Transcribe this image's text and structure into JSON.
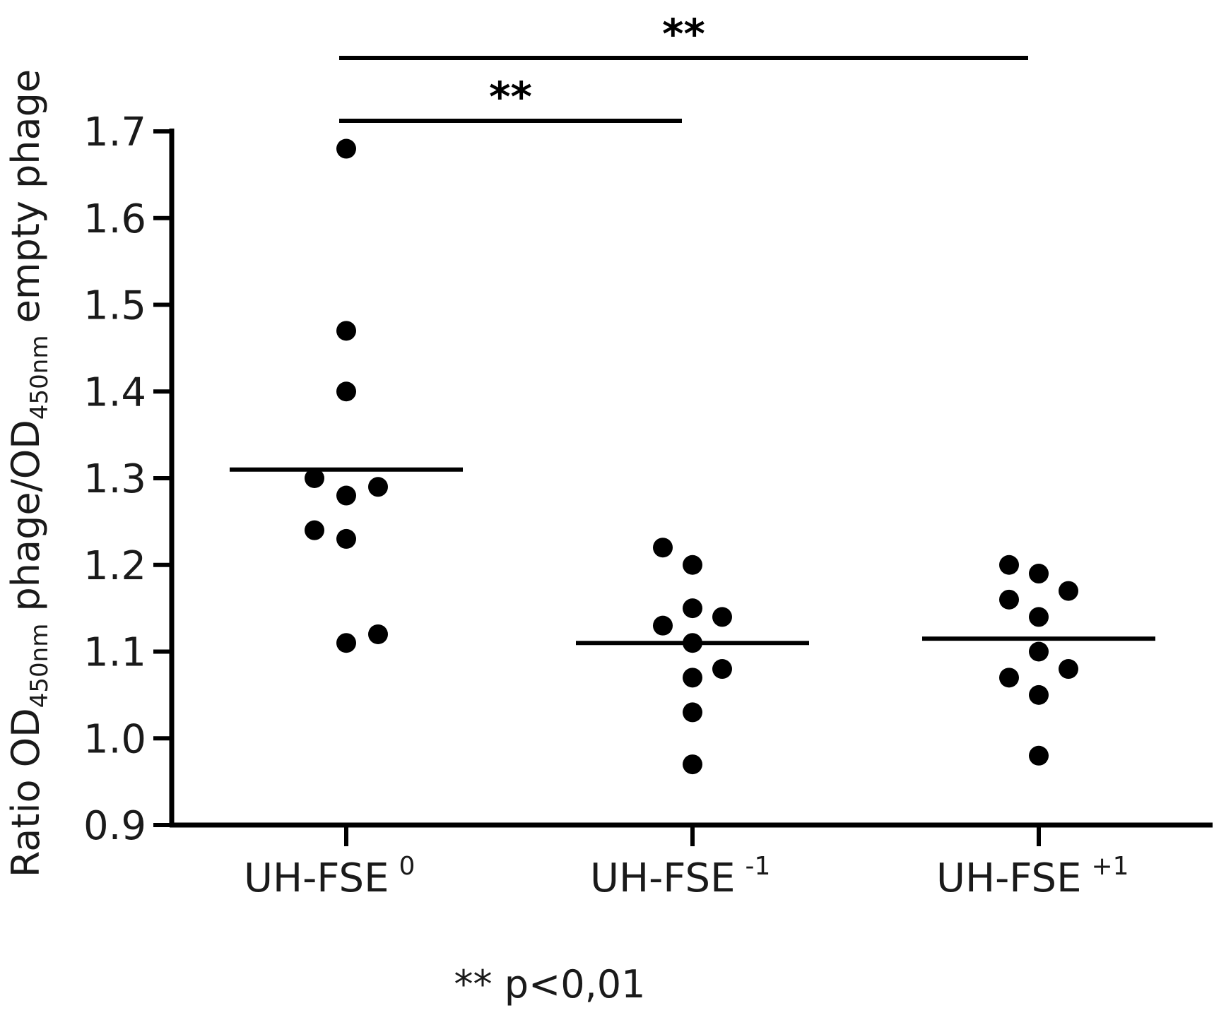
{
  "chart_data": {
    "type": "scatter",
    "ylabel_parts": {
      "prefix": "Ratio OD",
      "sub1": "450nm",
      "mid": " phage/OD",
      "sub2": "450nm",
      "suffix": " empty phage"
    },
    "ylim": [
      0.9,
      1.7
    ],
    "yticks": [
      "0.9",
      "1.0",
      "1.1",
      "1.2",
      "1.3",
      "1.4",
      "1.5",
      "1.6",
      "1.7"
    ],
    "categories": [
      {
        "base": "UH-FSE",
        "sup": "0"
      },
      {
        "base": "UH-FSE",
        "sup": "-1"
      },
      {
        "base": "UH-FSE",
        "sup": "+1"
      }
    ],
    "series": [
      {
        "values": [
          1.68,
          1.47,
          1.4,
          1.3,
          1.28,
          1.29,
          1.24,
          1.23,
          1.11,
          1.12
        ],
        "mean": 1.31
      },
      {
        "values": [
          1.22,
          1.2,
          1.15,
          1.13,
          1.14,
          1.11,
          1.08,
          1.07,
          1.03,
          0.97
        ],
        "mean": 1.11
      },
      {
        "values": [
          1.2,
          1.19,
          1.17,
          1.16,
          1.14,
          1.1,
          1.08,
          1.07,
          1.05,
          0.98
        ],
        "mean": 1.115
      }
    ],
    "significance": [
      {
        "from": 0,
        "to": 1,
        "label": "**"
      },
      {
        "from": 0,
        "to": 2,
        "label": "**"
      }
    ],
    "footnote": "** p<0,01",
    "grid": false,
    "legend": "none"
  }
}
